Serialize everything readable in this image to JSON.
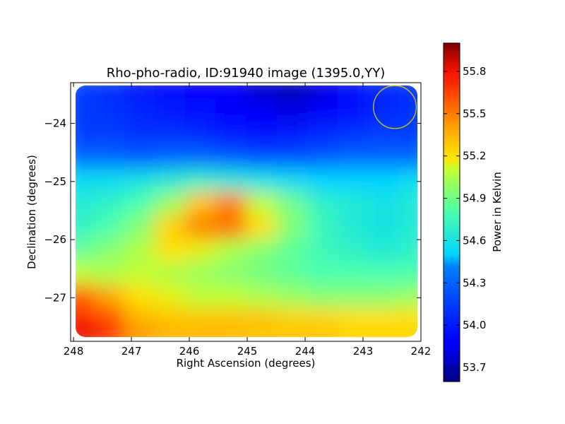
{
  "chart_data": {
    "type": "heatmap",
    "title": "Rho-pho-radio, ID:91940 image (1395.0,YY)",
    "xlabel": "Right Ascension (degrees)",
    "ylabel": "Declination (degrees)",
    "xlim": [
      248.05,
      242.0
    ],
    "ylim": [
      -27.75,
      -23.3
    ],
    "x_ticks": [
      248,
      247,
      246,
      245,
      244,
      243,
      242
    ],
    "y_ticks": [
      -24,
      -25,
      -26,
      -27
    ],
    "x_tick_labels": [
      "248",
      "247",
      "246",
      "245",
      "244",
      "243",
      "242"
    ],
    "y_tick_labels": [
      "−24",
      "−25",
      "−26",
      "−27"
    ],
    "colorbar": {
      "label": "Power in Kelvin",
      "range": [
        53.6,
        56.0
      ],
      "ticks": [
        53.7,
        54.0,
        54.3,
        54.6,
        54.9,
        55.2,
        55.5,
        55.8
      ],
      "tick_labels": [
        "53.7",
        "54.0",
        "54.3",
        "54.6",
        "54.9",
        "55.2",
        "55.5",
        "55.8"
      ],
      "colormap": "jet"
    },
    "field": {
      "ra_range": [
        247.9,
        242.1
      ],
      "dec_range": [
        -27.7,
        -23.35
      ],
      "rows": [
        {
          "dec": -23.4,
          "values": [
            54.15,
            54.1,
            54.0,
            53.95,
            53.9,
            53.85,
            53.75,
            53.7,
            53.8,
            53.95,
            54.05,
            54.1
          ]
        },
        {
          "dec": -23.8,
          "values": [
            54.15,
            54.1,
            54.05,
            54.0,
            53.95,
            53.9,
            53.85,
            53.8,
            53.85,
            53.95,
            54.05,
            54.1
          ]
        },
        {
          "dec": -24.2,
          "values": [
            54.15,
            54.15,
            54.1,
            54.1,
            54.05,
            54.0,
            53.95,
            54.0,
            54.05,
            54.1,
            54.15,
            54.15
          ]
        },
        {
          "dec": -24.6,
          "values": [
            54.3,
            54.3,
            54.25,
            54.3,
            54.3,
            54.25,
            54.2,
            54.2,
            54.25,
            54.3,
            54.3,
            54.3
          ]
        },
        {
          "dec": -25.0,
          "values": [
            54.55,
            54.55,
            54.6,
            54.65,
            54.7,
            54.65,
            54.6,
            54.55,
            54.5,
            54.5,
            54.5,
            54.55
          ]
        },
        {
          "dec": -25.4,
          "values": [
            54.65,
            54.7,
            54.8,
            55.0,
            55.3,
            55.5,
            55.1,
            54.9,
            54.7,
            54.65,
            54.6,
            54.65
          ]
        },
        {
          "dec": -25.8,
          "values": [
            54.7,
            54.8,
            54.95,
            55.25,
            55.5,
            55.55,
            55.2,
            54.95,
            54.75,
            54.65,
            54.6,
            54.65
          ]
        },
        {
          "dec": -26.2,
          "values": [
            54.85,
            54.95,
            55.05,
            55.2,
            55.15,
            55.05,
            54.95,
            54.85,
            54.75,
            54.7,
            54.65,
            54.7
          ]
        },
        {
          "dec": -26.6,
          "values": [
            55.1,
            55.05,
            55.1,
            55.05,
            55.0,
            54.95,
            54.9,
            54.85,
            54.8,
            54.8,
            54.8,
            54.8
          ]
        },
        {
          "dec": -27.0,
          "values": [
            55.6,
            55.4,
            55.2,
            55.15,
            55.1,
            55.1,
            55.05,
            55.0,
            54.95,
            54.95,
            54.95,
            55.0
          ]
        },
        {
          "dec": -27.4,
          "values": [
            55.75,
            55.65,
            55.35,
            55.3,
            55.3,
            55.3,
            55.3,
            55.25,
            55.25,
            55.2,
            55.2,
            55.2
          ]
        },
        {
          "dec": -27.7,
          "values": [
            55.85,
            55.7,
            55.45,
            55.35,
            55.35,
            55.35,
            55.3,
            55.3,
            55.3,
            55.25,
            55.25,
            55.25
          ]
        }
      ]
    },
    "annotations": [
      {
        "type": "circle",
        "ra": 242.45,
        "dec": -23.72,
        "radius_deg": 0.37,
        "color": "#c8c81e"
      }
    ]
  }
}
